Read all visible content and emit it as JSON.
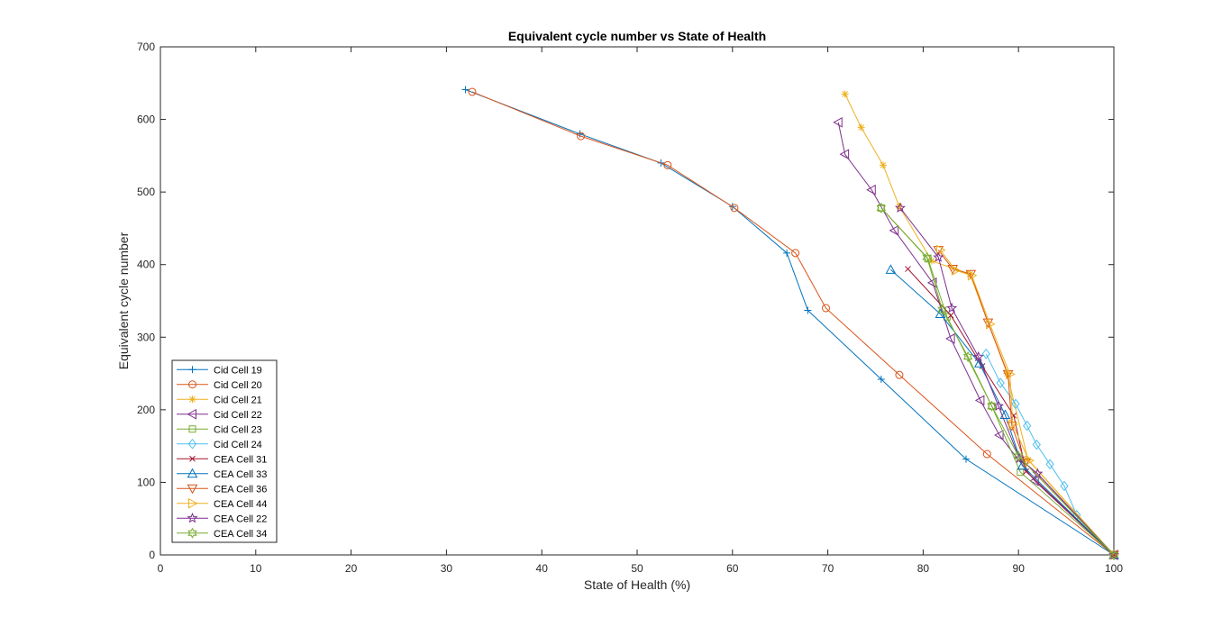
{
  "chart_data": {
    "type": "line",
    "title": "Equivalent cycle number vs State of Health",
    "xlabel": "State of Health (%)",
    "ylabel": "Equivalent cycle number",
    "xlim": [
      0,
      100
    ],
    "ylim": [
      0,
      700
    ],
    "xticks": [
      0,
      10,
      20,
      30,
      40,
      50,
      60,
      70,
      80,
      90,
      100
    ],
    "yticks": [
      0,
      100,
      200,
      300,
      400,
      500,
      600,
      700
    ],
    "grid": false,
    "legend_position": "bottom-left",
    "series": [
      {
        "name": "Cid Cell 19",
        "color": "#0072BD",
        "marker": "plus",
        "x": [
          100,
          84.5,
          75.6,
          67.9,
          65.7,
          60.0,
          52.5,
          44.0,
          32.0
        ],
        "y": [
          0,
          132,
          242,
          337,
          416,
          480,
          540,
          580,
          641
        ]
      },
      {
        "name": "Cid Cell 20",
        "color": "#D95319",
        "marker": "circle",
        "x": [
          100,
          86.7,
          77.5,
          69.8,
          66.6,
          60.2,
          53.2,
          44.1,
          32.7
        ],
        "y": [
          0,
          139,
          248,
          340,
          416,
          478,
          537,
          577,
          638
        ]
      },
      {
        "name": "Cid Cell 21",
        "color": "#EDB120",
        "marker": "asterisk",
        "x": [
          100,
          91.0,
          88.8,
          84.9,
          80.9,
          77.5,
          75.8,
          73.5,
          71.8
        ],
        "y": [
          0,
          131,
          250,
          387,
          405,
          480,
          537,
          589,
          635
        ]
      },
      {
        "name": "Cid Cell 22",
        "color": "#7E2F8E",
        "marker": "triangle-left",
        "x": [
          100,
          91.7,
          88.0,
          86.0,
          82.9,
          81.0,
          77.0,
          74.6,
          71.8,
          71.1
        ],
        "y": [
          0,
          102,
          165,
          213,
          298,
          375,
          447,
          503,
          552,
          596
        ]
      },
      {
        "name": "Cid Cell 23",
        "color": "#77AC30",
        "marker": "square",
        "x": [
          100,
          90.2,
          87.2,
          82.5,
          80.5,
          75.6
        ],
        "y": [
          0,
          114,
          205,
          328,
          408,
          478
        ]
      },
      {
        "name": "Cid Cell 24",
        "color": "#4DBEEE",
        "marker": "diamond",
        "x": [
          100,
          96.1,
          94.8,
          93.3,
          91.9,
          90.9,
          89.7,
          88.1,
          86.6
        ],
        "y": [
          0,
          55,
          95,
          125,
          152,
          178,
          208,
          237,
          277
        ]
      },
      {
        "name": "CEA Cell 31",
        "color": "#A2142F",
        "marker": "x",
        "x": [
          100,
          90.8,
          89.5,
          86.2,
          82.9,
          78.4
        ],
        "y": [
          0,
          115,
          192,
          260,
          330,
          394
        ]
      },
      {
        "name": "CEA Cell 33",
        "color": "#0072BD",
        "marker": "triangle-up",
        "x": [
          100,
          90.4,
          88.6,
          85.9,
          81.8,
          76.6
        ],
        "y": [
          0,
          123,
          193,
          264,
          332,
          393
        ]
      },
      {
        "name": "CEA Cell 36",
        "color": "#D95319",
        "marker": "triangle-down",
        "x": [
          100,
          90.7,
          89.3,
          88.9,
          86.8,
          85.0,
          83.1,
          81.6
        ],
        "y": [
          0,
          127,
          178,
          249,
          320,
          387,
          394,
          420
        ]
      },
      {
        "name": "CEA Cell 44",
        "color": "#EDB120",
        "marker": "triangle-right",
        "x": [
          100,
          91.1,
          89.4,
          89.1,
          87.0,
          85.1,
          83.4,
          81.8
        ],
        "y": [
          0,
          130,
          180,
          249,
          318,
          385,
          392,
          420
        ]
      },
      {
        "name": "CEA Cell 22",
        "color": "#7E2F8E",
        "marker": "pentagram",
        "x": [
          100,
          92.0,
          90.1,
          87.9,
          85.8,
          83.0,
          81.6,
          77.6
        ],
        "y": [
          0,
          112,
          133,
          205,
          273,
          340,
          410,
          478
        ]
      },
      {
        "name": "CEA Cell 34",
        "color": "#77AC30",
        "marker": "hexagram",
        "x": [
          100,
          90.0,
          87.2,
          84.7,
          82.0,
          80.4,
          75.6
        ],
        "y": [
          0,
          136,
          205,
          273,
          338,
          410,
          478
        ]
      }
    ]
  }
}
